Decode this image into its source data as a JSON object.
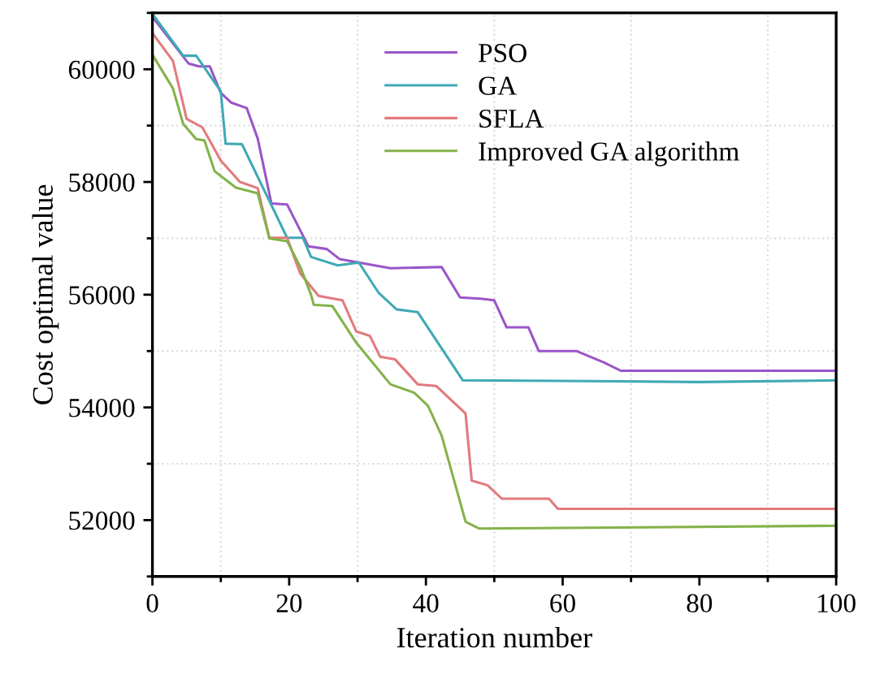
{
  "chart_data": {
    "type": "line",
    "xlabel": "Iteration number",
    "ylabel": "Cost optimal value",
    "xlim": [
      0,
      100
    ],
    "ylim": [
      51000,
      61000
    ],
    "xticks": [
      0,
      {
        "value": 10,
        "label": null
      },
      20,
      {
        "value": 30,
        "label": null
      },
      40,
      {
        "value": 50,
        "label": null
      },
      60,
      {
        "value": 70,
        "label": null
      },
      80,
      {
        "value": 90,
        "label": null
      },
      100
    ],
    "yticks": [
      {
        "value": 51000,
        "label": null
      },
      52000,
      {
        "value": 53000,
        "label": null
      },
      54000,
      {
        "value": 55000,
        "label": null
      },
      56000,
      {
        "value": 57000,
        "label": null
      },
      58000,
      {
        "value": 59000,
        "label": null
      },
      60000,
      {
        "value": 61000,
        "label": null
      }
    ],
    "grid": true,
    "legend": "top",
    "line_style": "solid",
    "marker": "none",
    "series": [
      {
        "name": "PSO",
        "color": "#9b55c8",
        "x": [
          0,
          5.3,
          6.8,
          8.4,
          10,
          11.5,
          13.8,
          15.4,
          17.4,
          19.7,
          22.8,
          25.5,
          27.4,
          34.8,
          42.3,
          45,
          48,
          50,
          51.8,
          55,
          56.5,
          62,
          66,
          68.5,
          100
        ],
        "values": [
          60930,
          60100,
          60050,
          60050,
          59580,
          59410,
          59310,
          58770,
          57620,
          57600,
          56860,
          56810,
          56630,
          56470,
          56490,
          55950,
          55930,
          55900,
          55420,
          55420,
          55000,
          55000,
          54800,
          54650,
          54650
        ]
      },
      {
        "name": "GA",
        "color": "#3fa9b5",
        "x": [
          0,
          4.5,
          6.4,
          10,
          10.7,
          13.1,
          19.7,
          22,
          23.2,
          27.1,
          30.2,
          33.1,
          35.7,
          38.8,
          45.4,
          60,
          80,
          100
        ],
        "values": [
          60980,
          60240,
          60240,
          59610,
          58680,
          58670,
          57010,
          57010,
          56670,
          56520,
          56570,
          56030,
          55740,
          55690,
          54480,
          54470,
          54450,
          54480
        ]
      },
      {
        "name": "SFLA",
        "color": "#e27a7e",
        "x": [
          0,
          3,
          5,
          7.3,
          10,
          12.8,
          15.4,
          17.1,
          19.7,
          21.6,
          24.3,
          26,
          27.8,
          29.8,
          31.8,
          33.3,
          35.5,
          38.8,
          41.5,
          45.8,
          46.7,
          49,
          51.1,
          58,
          59.3,
          100
        ],
        "values": [
          60640,
          60150,
          59120,
          58970,
          58380,
          58000,
          57890,
          57010,
          57010,
          56380,
          55980,
          55940,
          55900,
          55350,
          55270,
          54900,
          54850,
          54410,
          54380,
          53890,
          52700,
          52620,
          52380,
          52380,
          52200,
          52200
        ]
      },
      {
        "name": "Improved GA algorithm",
        "color": "#84b24a",
        "x": [
          0,
          3,
          4.5,
          6.4,
          7.6,
          9.1,
          12.2,
          15.4,
          17.1,
          19.7,
          21.6,
          23.2,
          23.6,
          26.3,
          29.8,
          34.8,
          38.3,
          40.3,
          42.3,
          45.8,
          47.8,
          100
        ],
        "values": [
          60260,
          59660,
          59030,
          58760,
          58740,
          58190,
          57900,
          57800,
          57000,
          56950,
          56500,
          56000,
          55820,
          55800,
          55150,
          54410,
          54260,
          54030,
          53500,
          51970,
          51850,
          51900
        ]
      }
    ]
  }
}
